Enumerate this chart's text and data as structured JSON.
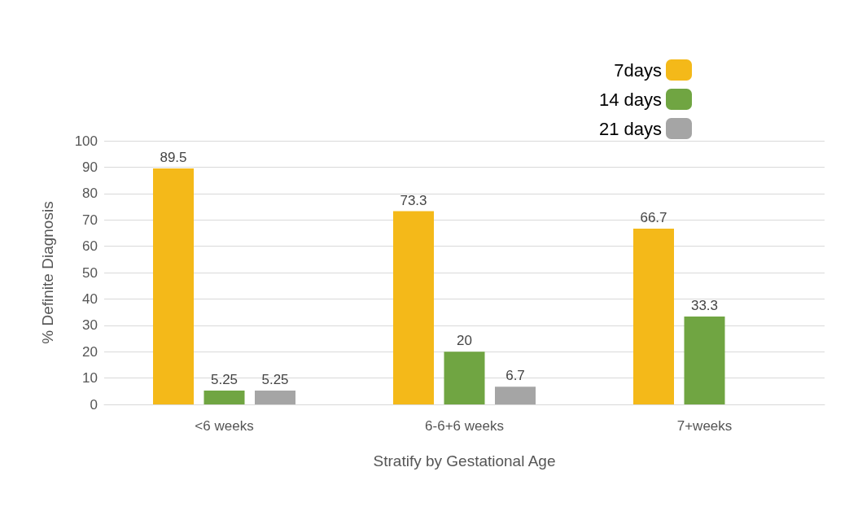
{
  "chart_data": {
    "type": "bar",
    "xlabel": "Stratify by Gestational Age",
    "ylabel": "% Definite Diagnosis",
    "categories": [
      "<6 weeks",
      "6-6+6 weeks",
      "7+weeks"
    ],
    "series": [
      {
        "name": "7days",
        "color": "#f4b919",
        "values": [
          89.5,
          73.3,
          66.7
        ]
      },
      {
        "name": "14 days",
        "color": "#70a542",
        "values": [
          5.25,
          20,
          33.3
        ]
      },
      {
        "name": "21 days",
        "color": "#a5a5a5",
        "values": [
          5.25,
          6.7,
          null
        ]
      }
    ],
    "ylim": [
      0,
      100
    ],
    "yticks": [
      0,
      10,
      20,
      30,
      40,
      50,
      60,
      70,
      80,
      90,
      100
    ],
    "grid": "y",
    "legend": "top right",
    "data_labels": true
  }
}
